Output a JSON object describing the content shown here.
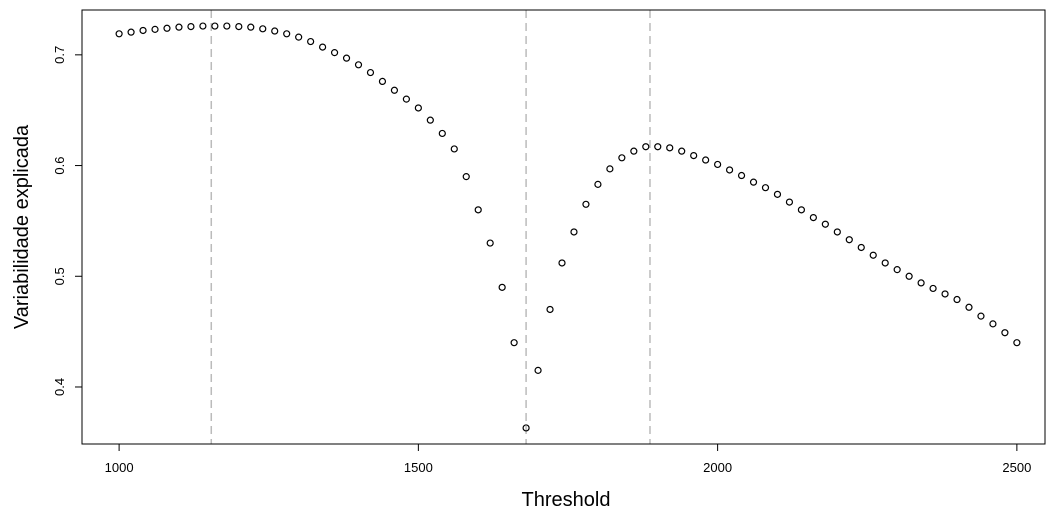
{
  "chart_data": {
    "type": "scatter",
    "xlabel": "Threshold",
    "ylabel": "Variabilidade explicada",
    "x": [
      1000,
      1020,
      1040,
      1060,
      1080,
      1100,
      1120,
      1140,
      1160,
      1180,
      1200,
      1220,
      1240,
      1260,
      1280,
      1300,
      1320,
      1340,
      1360,
      1380,
      1400,
      1420,
      1440,
      1460,
      1480,
      1500,
      1520,
      1540,
      1560,
      1580,
      1600,
      1620,
      1640,
      1660,
      1680,
      1700,
      1720,
      1740,
      1760,
      1780,
      1800,
      1820,
      1840,
      1860,
      1880,
      1900,
      1920,
      1940,
      1960,
      1980,
      2000,
      2020,
      2040,
      2060,
      2080,
      2100,
      2120,
      2140,
      2160,
      2180,
      2200,
      2220,
      2240,
      2260,
      2280,
      2300,
      2320,
      2340,
      2360,
      2380,
      2400,
      2420,
      2440,
      2460,
      2480,
      2500
    ],
    "values": [
      0.719,
      0.7205,
      0.722,
      0.723,
      0.724,
      0.725,
      0.7255,
      0.726,
      0.726,
      0.726,
      0.7255,
      0.725,
      0.7235,
      0.7215,
      0.719,
      0.716,
      0.712,
      0.707,
      0.702,
      0.697,
      0.691,
      0.684,
      0.676,
      0.668,
      0.66,
      0.652,
      0.641,
      0.629,
      0.615,
      0.59,
      0.56,
      0.53,
      0.49,
      0.44,
      0.363,
      0.415,
      0.47,
      0.512,
      0.54,
      0.565,
      0.583,
      0.597,
      0.607,
      0.613,
      0.617,
      0.617,
      0.616,
      0.613,
      0.609,
      0.605,
      0.601,
      0.596,
      0.591,
      0.585,
      0.58,
      0.574,
      0.567,
      0.56,
      0.553,
      0.547,
      0.54,
      0.533,
      0.526,
      0.519,
      0.512,
      0.506,
      0.5,
      0.494,
      0.489,
      0.484,
      0.479,
      0.472,
      0.464,
      0.457,
      0.449,
      0.44
    ],
    "color": "#000000",
    "vlines": [
      1154,
      1680,
      1887
    ],
    "vline_color": "#bbbbbb",
    "xlim": [
      938,
      2547
    ],
    "ylim": [
      0.3485,
      0.7405
    ],
    "xticks": [
      1000,
      1500,
      2000,
      2500
    ],
    "yticks": [
      0.4,
      0.5,
      0.6,
      0.7
    ]
  }
}
